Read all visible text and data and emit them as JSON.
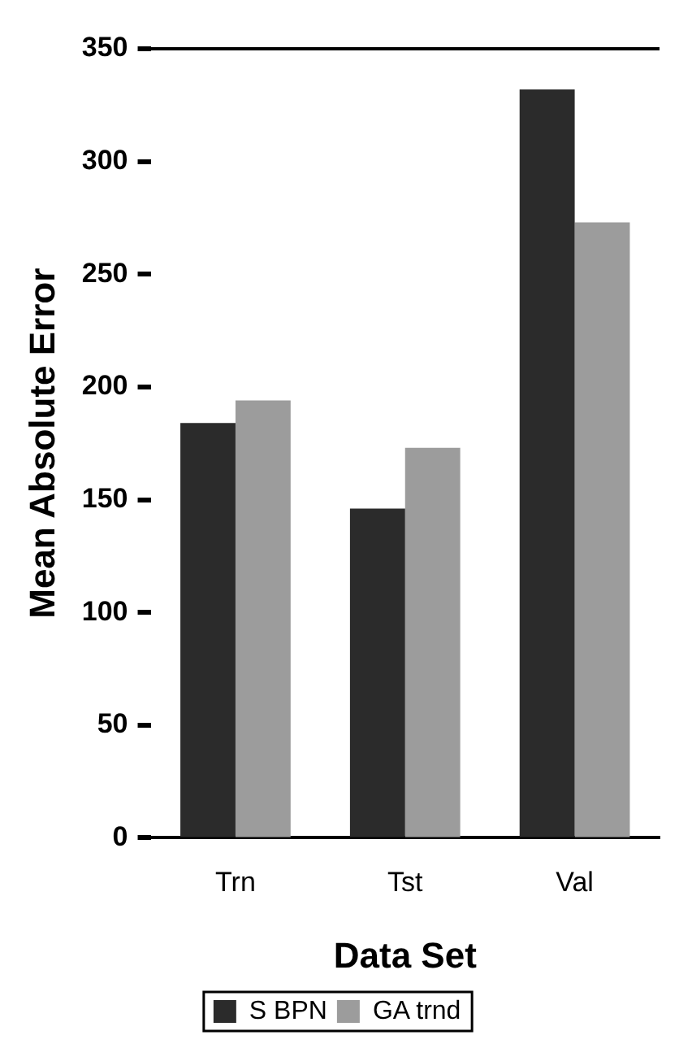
{
  "chart_data": {
    "type": "bar",
    "xlabel": "Data Set",
    "ylabel": "Mean Absolute Error",
    "categories": [
      "Trn",
      "Tst",
      "Val"
    ],
    "series": [
      {
        "name": "S BPN",
        "color": "#2b2b2b",
        "values": [
          184,
          146,
          332
        ]
      },
      {
        "name": "GA trnd",
        "color": "#9c9c9c",
        "values": [
          194,
          173,
          273
        ]
      }
    ],
    "ylim": [
      0,
      350
    ],
    "yticks": [
      0,
      50,
      100,
      150,
      200,
      250,
      300,
      350
    ],
    "grid": false,
    "legend": "bottom"
  }
}
